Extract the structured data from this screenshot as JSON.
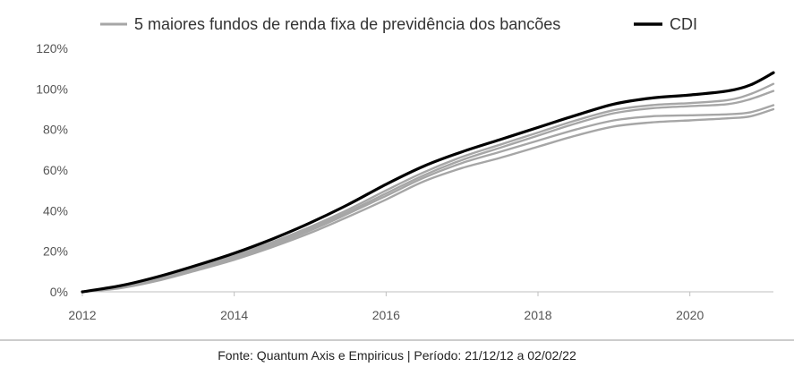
{
  "chart_data": {
    "type": "line",
    "title": "",
    "xlabel": "",
    "ylabel": "",
    "xlim": [
      2012,
      2021.1
    ],
    "ylim": [
      0,
      120
    ],
    "x_ticks": [
      "2012",
      "2014",
      "2016",
      "2018",
      "2020"
    ],
    "y_ticks": [
      "0%",
      "20%",
      "40%",
      "60%",
      "80%",
      "100%",
      "120%"
    ],
    "grid": false,
    "legend_position": "top",
    "legend": [
      {
        "label": "5 maiores fundos de renda fixa de previdência dos bancões",
        "color": "#a6a6a6"
      },
      {
        "label": "CDI",
        "color": "#000000"
      }
    ],
    "series": [
      {
        "name": "CDI",
        "color": "#000000",
        "x": [
          2012.0,
          2012.5,
          2013.0,
          2013.5,
          2014.0,
          2014.5,
          2015.0,
          2015.5,
          2016.0,
          2016.5,
          2017.0,
          2017.5,
          2018.0,
          2018.5,
          2019.0,
          2019.5,
          2020.0,
          2020.5,
          2020.8,
          2021.1
        ],
        "y": [
          0,
          3,
          7.5,
          13,
          19,
          26,
          34,
          43,
          53,
          62,
          69,
          75,
          81,
          87,
          92.5,
          95.5,
          97,
          99,
          102,
          108
        ]
      },
      {
        "name": "",
        "color": "#a6a6a6",
        "x": [
          2012.0,
          2012.5,
          2013.0,
          2013.5,
          2014.0,
          2014.5,
          2015.0,
          2015.5,
          2016.0,
          2016.5,
          2017.0,
          2017.5,
          2018.0,
          2018.5,
          2019.0,
          2019.5,
          2020.0,
          2020.5,
          2020.8,
          2021.1
        ],
        "y": [
          0,
          2.7,
          7,
          12.3,
          18,
          24.5,
          32,
          40.5,
          50,
          59,
          66.5,
          72.5,
          78.5,
          84.5,
          89.5,
          92,
          93,
          94.5,
          97.5,
          102.5
        ]
      },
      {
        "name": "",
        "color": "#a6a6a6",
        "x": [
          2012.0,
          2012.5,
          2013.0,
          2013.5,
          2014.0,
          2014.5,
          2015.0,
          2015.5,
          2016.0,
          2016.5,
          2017.0,
          2017.5,
          2018.0,
          2018.5,
          2019.0,
          2019.5,
          2020.0,
          2020.5,
          2020.8,
          2021.1
        ],
        "y": [
          0,
          2.4,
          6.5,
          11.8,
          17.3,
          23.7,
          31,
          39.4,
          48.5,
          57.5,
          65,
          71,
          77,
          83,
          88,
          90.5,
          91.5,
          92.5,
          95,
          99
        ]
      },
      {
        "name": "",
        "color": "#a6a6a6",
        "x": [
          2012.0,
          2012.5,
          2013.0,
          2013.5,
          2014.0,
          2014.5,
          2015.0,
          2015.5,
          2016.0,
          2016.5,
          2017.0,
          2017.5,
          2018.0,
          2018.5,
          2019.0,
          2019.5,
          2020.0,
          2020.5,
          2020.8,
          2021.1
        ],
        "y": [
          0,
          2.1,
          6,
          11.2,
          16.7,
          23,
          30.2,
          38.5,
          47.3,
          56.3,
          63.5,
          69,
          74.5,
          80,
          84.5,
          86.5,
          87,
          87.5,
          88.5,
          92
        ]
      },
      {
        "name": "",
        "color": "#a6a6a6",
        "x": [
          2012.0,
          2012.5,
          2013.0,
          2013.5,
          2014.0,
          2014.5,
          2015.0,
          2015.5,
          2016.0,
          2016.5,
          2017.0,
          2017.5,
          2018.0,
          2018.5,
          2019.0,
          2019.5,
          2020.0,
          2020.5,
          2020.8,
          2021.1
        ],
        "y": [
          0,
          1.8,
          5.5,
          10.5,
          15.8,
          22,
          29,
          37,
          45.5,
          54.5,
          61,
          66,
          71.5,
          77,
          81.5,
          83.5,
          84.5,
          85.5,
          86.5,
          90
        ]
      }
    ],
    "source_note": "Fonte: Quantum Axis e Empiricus | Período: 21/12/12 a 02/02/22"
  }
}
